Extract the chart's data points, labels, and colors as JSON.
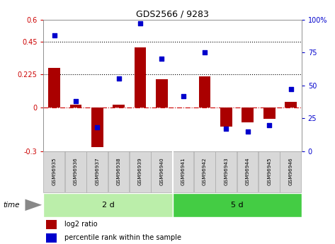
{
  "title": "GDS2566 / 9283",
  "samples": [
    "GSM96935",
    "GSM96936",
    "GSM96937",
    "GSM96938",
    "GSM96939",
    "GSM96940",
    "GSM96941",
    "GSM96942",
    "GSM96943",
    "GSM96944",
    "GSM96945",
    "GSM96946"
  ],
  "log2_ratio": [
    0.27,
    0.02,
    -0.27,
    0.02,
    0.41,
    0.19,
    0.0,
    0.21,
    -0.13,
    -0.1,
    -0.08,
    0.04
  ],
  "percentile_rank": [
    88,
    38,
    18,
    55,
    97,
    70,
    42,
    75,
    17,
    15,
    20,
    47
  ],
  "groups": [
    {
      "label": "2 d",
      "start": 0,
      "end": 6,
      "color_light": "#c8f0c8",
      "color_dark": "#44cc44"
    },
    {
      "label": "5 d",
      "start": 6,
      "end": 12,
      "color_light": "#55dd55",
      "color_dark": "#22bb22"
    }
  ],
  "bar_color": "#aa0000",
  "dot_color": "#0000cc",
  "ylim_left": [
    -0.3,
    0.6
  ],
  "ylim_right": [
    0,
    100
  ],
  "yticks_left": [
    -0.3,
    0.0,
    0.225,
    0.45,
    0.6
  ],
  "yticks_left_labels": [
    "-0.3",
    "0",
    "0.225",
    "0.45",
    "0.6"
  ],
  "yticks_right": [
    0,
    25,
    50,
    75,
    100
  ],
  "yticks_right_labels": [
    "0",
    "25",
    "50",
    "75",
    "100%"
  ],
  "hlines": [
    0.225,
    0.45
  ],
  "hline_zero_color": "#cc0000",
  "background_color": "#ffffff",
  "time_label": "time",
  "legend_log2": "log2 ratio",
  "legend_pct": "percentile rank within the sample"
}
